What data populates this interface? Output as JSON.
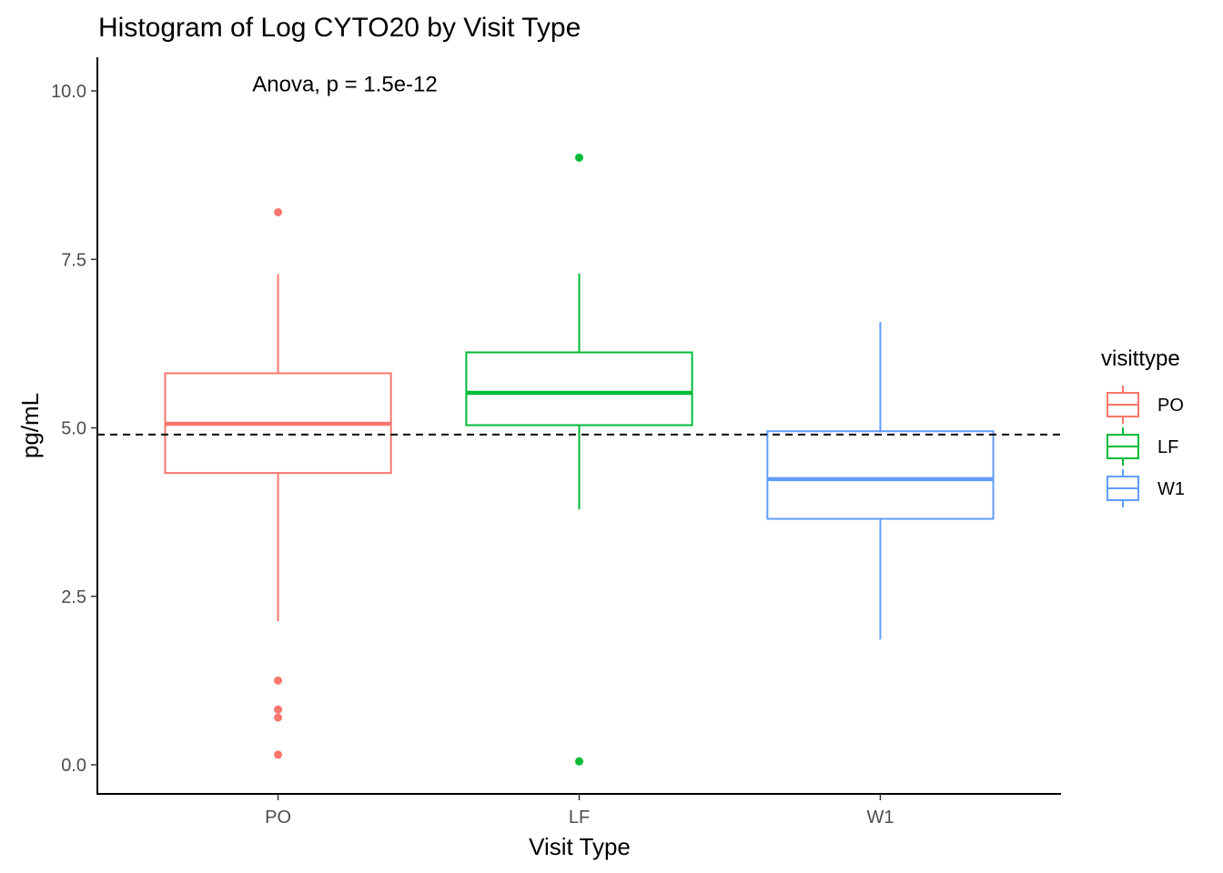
{
  "chart_data": {
    "type": "boxplot",
    "title": "Histogram of Log CYTO20 by Visit Type",
    "xlabel": "Visit Type",
    "ylabel": "pg/mL",
    "ylim": [
      -0.45,
      10.5
    ],
    "yticks": [
      0.0,
      2.5,
      5.0,
      7.5,
      10.0
    ],
    "ytick_labels": [
      "0.0",
      "2.5",
      "5.0",
      "7.5",
      "10.0"
    ],
    "categories": [
      "PO",
      "LF",
      "W1"
    ],
    "reference_line": {
      "y": 4.9,
      "style": "dashed"
    },
    "annotation": {
      "text": "Anova, p = 1.5e-12",
      "x": 2.1,
      "y": 10.1
    },
    "legend": {
      "title": "visittype",
      "position": "right",
      "entries": [
        "PO",
        "LF",
        "W1"
      ]
    },
    "grid": false,
    "series": [
      {
        "name": "PO",
        "color": "#F8766D",
        "q1": 4.33,
        "median": 5.06,
        "q3": 5.81,
        "whisker_low": 2.13,
        "whisker_high": 7.28,
        "outliers": [
          8.2,
          1.25,
          0.82,
          0.7,
          0.15
        ]
      },
      {
        "name": "LF",
        "color": "#00BA38",
        "q1": 5.04,
        "median": 5.52,
        "q3": 6.12,
        "whisker_low": 3.79,
        "whisker_high": 7.29,
        "outliers": [
          9.01,
          0.05
        ]
      },
      {
        "name": "W1",
        "color": "#619CFF",
        "q1": 3.65,
        "median": 4.24,
        "q3": 4.95,
        "whisker_low": 1.86,
        "whisker_high": 6.57,
        "outliers": []
      }
    ]
  }
}
